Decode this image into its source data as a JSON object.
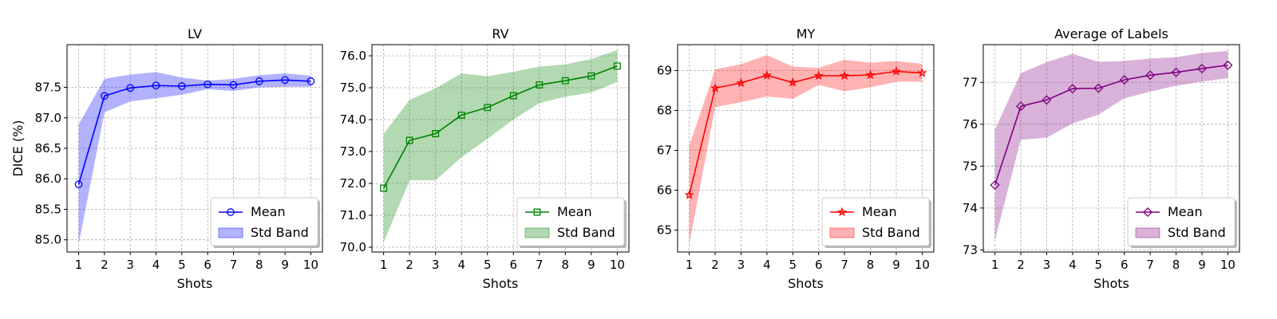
{
  "figure": {
    "shared_ylabel": "DICE (%)"
  },
  "chart_data": [
    {
      "type": "line",
      "title": "LV",
      "xlabel": "Shots",
      "ylabel": "DICE (%)",
      "x": [
        1,
        2,
        3,
        4,
        5,
        6,
        7,
        8,
        9,
        10
      ],
      "xlim": [
        0.55,
        10.45
      ],
      "ylim": [
        84.8,
        88.2
      ],
      "yticks": [
        85.0,
        85.5,
        86.0,
        86.5,
        87.0,
        87.5
      ],
      "ytick_labels": [
        "85.0",
        "85.5",
        "86.0",
        "86.5",
        "87.0",
        "87.5"
      ],
      "color": "#0000ff",
      "band_color": "#0000ff",
      "marker": "circle",
      "grid": true,
      "legend": {
        "position": "bottom-right",
        "mean_label": "Mean",
        "band_label": "Std Band"
      },
      "series": [
        {
          "name": "Mean",
          "values": [
            85.91,
            87.36,
            87.49,
            87.53,
            87.52,
            87.55,
            87.54,
            87.6,
            87.62,
            87.6
          ]
        },
        {
          "name": "Std Band (lower)",
          "values": [
            84.93,
            87.09,
            87.27,
            87.32,
            87.38,
            87.47,
            87.44,
            87.5,
            87.51,
            87.51
          ]
        },
        {
          "name": "Std Band (upper)",
          "values": [
            86.89,
            87.64,
            87.71,
            87.75,
            87.66,
            87.61,
            87.64,
            87.7,
            87.73,
            87.69
          ]
        }
      ]
    },
    {
      "type": "line",
      "title": "RV",
      "xlabel": "Shots",
      "ylabel": "",
      "x": [
        1,
        2,
        3,
        4,
        5,
        6,
        7,
        8,
        9,
        10
      ],
      "xlim": [
        0.55,
        10.45
      ],
      "ylim": [
        69.85,
        76.35
      ],
      "yticks": [
        70.0,
        71.0,
        72.0,
        73.0,
        74.0,
        75.0,
        76.0
      ],
      "ytick_labels": [
        "70.0",
        "71.0",
        "72.0",
        "73.0",
        "74.0",
        "75.0",
        "76.0"
      ],
      "color": "#008000",
      "band_color": "#008000",
      "marker": "square",
      "grid": true,
      "legend": {
        "position": "bottom-right",
        "mean_label": "Mean",
        "band_label": "Std Band"
      },
      "series": [
        {
          "name": "Mean",
          "values": [
            71.85,
            73.35,
            73.56,
            74.14,
            74.38,
            74.75,
            75.09,
            75.22,
            75.37,
            75.68
          ]
        },
        {
          "name": "Std Band (lower)",
          "values": [
            70.15,
            72.1,
            72.1,
            72.82,
            73.4,
            74.0,
            74.52,
            74.72,
            74.85,
            75.18
          ]
        },
        {
          "name": "Std Band (upper)",
          "values": [
            73.55,
            74.62,
            74.98,
            75.45,
            75.36,
            75.5,
            75.66,
            75.73,
            75.9,
            76.18
          ]
        }
      ]
    },
    {
      "type": "line",
      "title": "MY",
      "xlabel": "Shots",
      "ylabel": "",
      "x": [
        1,
        2,
        3,
        4,
        5,
        6,
        7,
        8,
        9,
        10
      ],
      "xlim": [
        0.55,
        10.45
      ],
      "ylim": [
        64.45,
        69.65
      ],
      "yticks": [
        65,
        66,
        67,
        68,
        69
      ],
      "ytick_labels": [
        "65",
        "66",
        "67",
        "68",
        "69"
      ],
      "color": "#ff0000",
      "band_color": "#ff0000",
      "marker": "star",
      "grid": true,
      "legend": {
        "position": "bottom-right",
        "mean_label": "Mean",
        "band_label": "Std Band"
      },
      "series": [
        {
          "name": "Mean",
          "values": [
            65.88,
            68.56,
            68.69,
            68.88,
            68.7,
            68.87,
            68.87,
            68.89,
            68.98,
            68.94
          ]
        },
        {
          "name": "Std Band (lower)",
          "values": [
            64.65,
            68.08,
            68.21,
            68.35,
            68.29,
            68.64,
            68.48,
            68.58,
            68.72,
            68.72
          ]
        },
        {
          "name": "Std Band (upper)",
          "values": [
            67.12,
            69.03,
            69.16,
            69.39,
            69.1,
            69.07,
            69.27,
            69.2,
            69.24,
            69.17
          ]
        }
      ]
    },
    {
      "type": "line",
      "title": "Average of Labels",
      "xlabel": "Shots",
      "ylabel": "",
      "x": [
        1,
        2,
        3,
        4,
        5,
        6,
        7,
        8,
        9,
        10
      ],
      "xlim": [
        0.55,
        10.45
      ],
      "ylim": [
        72.95,
        77.9
      ],
      "yticks": [
        73,
        74,
        75,
        76,
        77
      ],
      "ytick_labels": [
        "73",
        "74",
        "75",
        "76",
        "77"
      ],
      "color": "#800080",
      "band_color": "#800080",
      "marker": "diamond",
      "grid": true,
      "legend": {
        "position": "bottom-right",
        "mean_label": "Mean",
        "band_label": "Std Band"
      },
      "series": [
        {
          "name": "Mean",
          "values": [
            74.55,
            76.43,
            76.58,
            76.85,
            76.86,
            77.06,
            77.17,
            77.24,
            77.33,
            77.41
          ]
        },
        {
          "name": "Std Band (lower)",
          "values": [
            73.23,
            75.63,
            75.68,
            76.02,
            76.23,
            76.62,
            76.78,
            76.92,
            77.02,
            77.1
          ]
        },
        {
          "name": "Std Band (upper)",
          "values": [
            75.87,
            77.22,
            77.48,
            77.68,
            77.49,
            77.51,
            77.57,
            77.6,
            77.7,
            77.75
          ]
        }
      ]
    }
  ]
}
